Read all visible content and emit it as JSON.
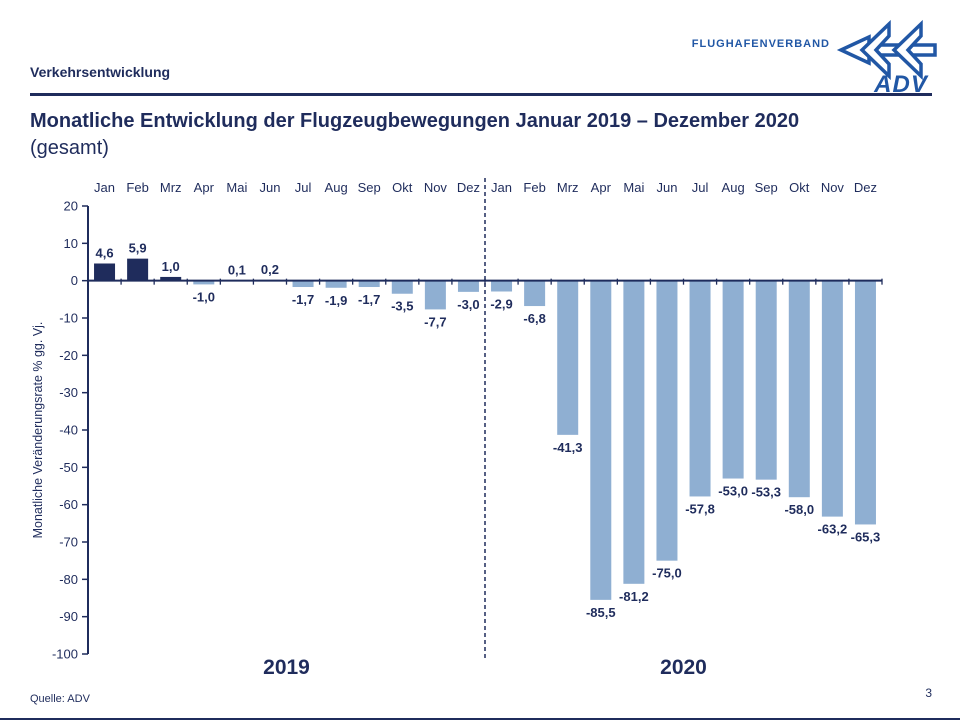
{
  "header": {
    "section_label": "Verkehrsentwicklung",
    "logo_text": "FLUGHAFENVERBAND",
    "logo_abbr": "ADV"
  },
  "title": {
    "line1": "Monatliche Entwicklung der Flugzeugbewegungen Januar 2019 – Dezember 2020",
    "line2": "(gesamt)"
  },
  "chart_data": {
    "type": "bar",
    "categories": [
      "Jan",
      "Feb",
      "Mrz",
      "Apr",
      "Mai",
      "Jun",
      "Jul",
      "Aug",
      "Sep",
      "Okt",
      "Nov",
      "Dez",
      "Jan",
      "Feb",
      "Mrz",
      "Apr",
      "Mai",
      "Jun",
      "Jul",
      "Aug",
      "Sep",
      "Okt",
      "Nov",
      "Dez"
    ],
    "values": [
      4.6,
      5.9,
      1.0,
      -1.0,
      0.1,
      0.2,
      -1.7,
      -1.9,
      -1.7,
      -3.5,
      -7.7,
      -3.0,
      -2.9,
      -6.8,
      -41.3,
      -85.5,
      -81.2,
      -75.0,
      -57.8,
      -53.0,
      -53.3,
      -58.0,
      -63.2,
      -65.3
    ],
    "labels": [
      "4,6",
      "5,9",
      "1,0",
      "-1,0",
      "0,1",
      "0,2",
      "-1,7",
      "-1,9",
      "-1,7",
      "-3,5",
      "-7,7",
      "-3,0",
      "-2,9",
      "-6,8",
      "-41,3",
      "-85,5",
      "-81,2",
      "-75,0",
      "-57,8",
      "-53,0",
      "-53,3",
      "-58,0",
      "-63,2",
      "-65,3"
    ],
    "year_groups": [
      {
        "label": "2019",
        "months": 12
      },
      {
        "label": "2020",
        "months": 12
      }
    ],
    "ylabel": "Monatliche Veränderungsrate % gg. Vj.",
    "ylim": [
      -100,
      20
    ],
    "ytick_step": 10,
    "grid": false,
    "legend": false,
    "divider_after_index": 11,
    "colors": {
      "positive": "#1f2c5c",
      "negative": "#8fafd2",
      "axis": "#1f2c5c",
      "logo_blue": "#2157a5"
    }
  },
  "footer": {
    "source": "Quelle: ADV",
    "page_number": "3"
  }
}
